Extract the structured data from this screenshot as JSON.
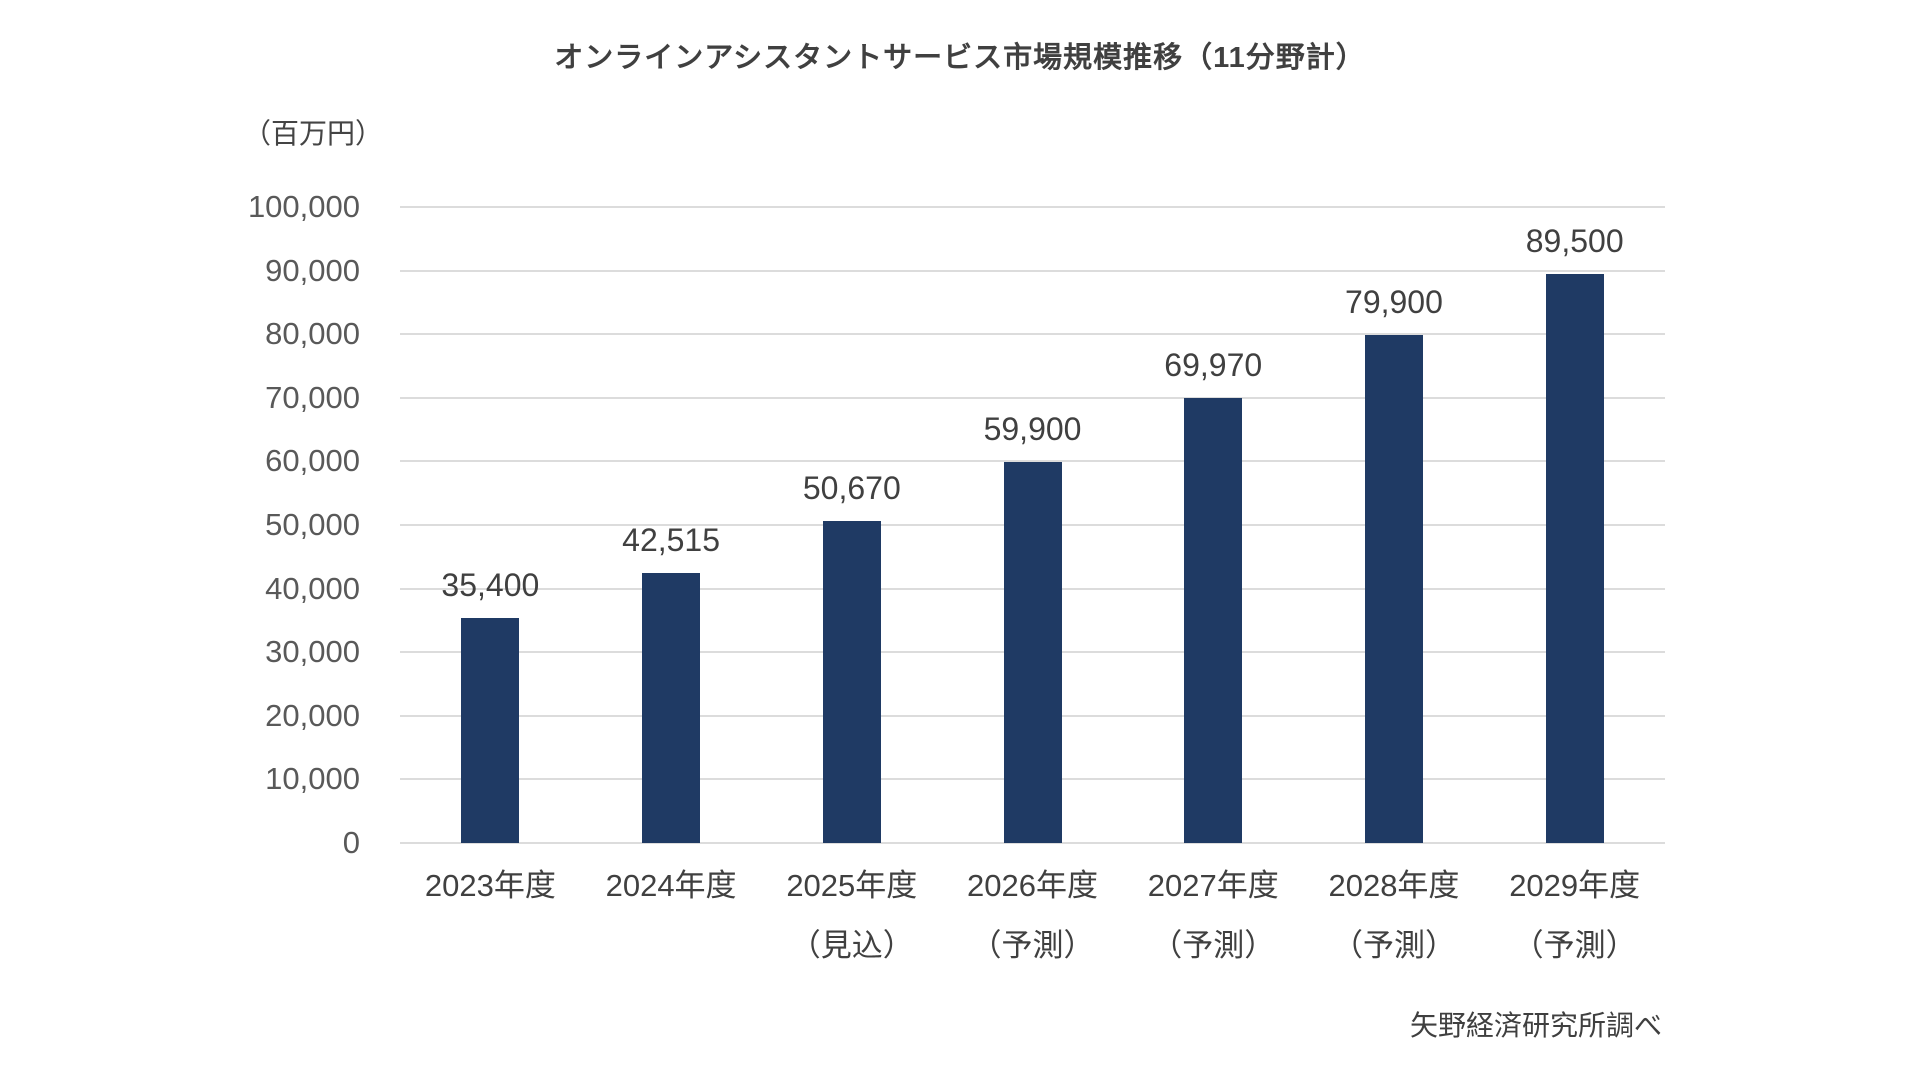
{
  "chart_data": {
    "type": "bar",
    "title": "オンラインアシスタントサービス市場規模推移（11分野計）",
    "unit_label": "（百万円）",
    "source": "矢野経済研究所調べ",
    "categories": [
      {
        "line1": "2023年度",
        "line2": ""
      },
      {
        "line1": "2024年度",
        "line2": ""
      },
      {
        "line1": "2025年度",
        "line2": "（見込）"
      },
      {
        "line1": "2026年度",
        "line2": "（予測）"
      },
      {
        "line1": "2027年度",
        "line2": "（予測）"
      },
      {
        "line1": "2028年度",
        "line2": "（予測）"
      },
      {
        "line1": "2029年度",
        "line2": "（予測）"
      }
    ],
    "values": [
      35400,
      42515,
      50670,
      59900,
      69970,
      79900,
      89500
    ],
    "value_labels": [
      "35,400",
      "42,515",
      "50,670",
      "59,900",
      "69,970",
      "79,900",
      "89,500"
    ],
    "xlabel": "",
    "ylabel": "百万円",
    "ylim": [
      0,
      100000
    ],
    "ytick_step": 10000,
    "ytick_labels": [
      "0",
      "10,000",
      "20,000",
      "30,000",
      "40,000",
      "50,000",
      "60,000",
      "70,000",
      "80,000",
      "90,000",
      "100,000"
    ],
    "grid": true,
    "legend_position": "none",
    "bar_color": "#1f3a64",
    "gridline_color": "#dcdcdc",
    "label_color": "#404040"
  }
}
